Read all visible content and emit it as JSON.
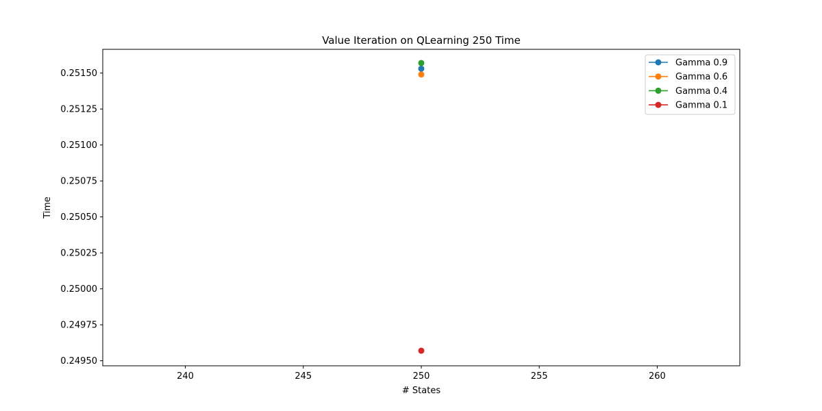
{
  "chart_data": {
    "type": "scatter",
    "title": "Value Iteration on QLearning 250  Time",
    "xlabel": "# States",
    "ylabel": "Time",
    "xlim": [
      236.5,
      263.5
    ],
    "ylim": [
      0.249465,
      0.251665
    ],
    "xticks": [
      240,
      245,
      250,
      255,
      260
    ],
    "yticks": [
      0.2495,
      0.24975,
      0.25,
      0.25025,
      0.2505,
      0.25075,
      0.251,
      0.25125,
      0.2515
    ],
    "ytick_labels": [
      "0.24950",
      "0.24975",
      "0.25000",
      "0.25025",
      "0.25050",
      "0.25075",
      "0.25100",
      "0.25125",
      "0.25150"
    ],
    "grid": false,
    "legend_position": "top-right",
    "series": [
      {
        "name": "Gamma 0.9",
        "color": "#1f77b4",
        "x": [
          250
        ],
        "y": [
          0.25153
        ]
      },
      {
        "name": "Gamma 0.6",
        "color": "#ff7f0e",
        "x": [
          250
        ],
        "y": [
          0.25149
        ]
      },
      {
        "name": "Gamma 0.4",
        "color": "#2ca02c",
        "x": [
          250
        ],
        "y": [
          0.25157
        ]
      },
      {
        "name": "Gamma 0.1",
        "color": "#d62728",
        "x": [
          250
        ],
        "y": [
          0.24957
        ]
      }
    ]
  }
}
